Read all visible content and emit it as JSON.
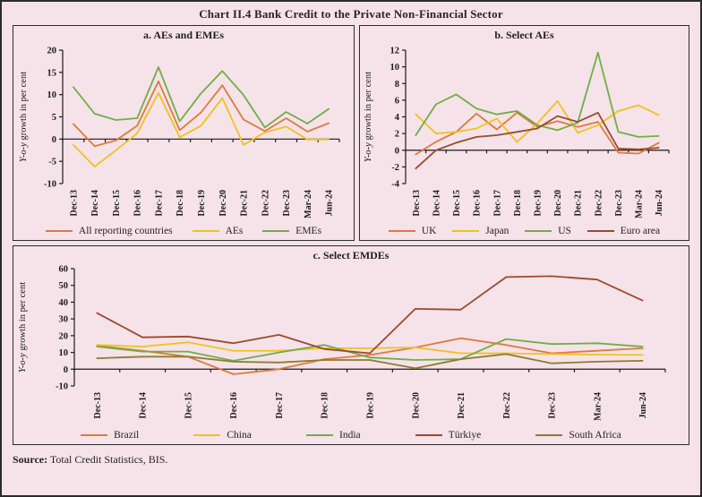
{
  "title": "Chart II.4 Bank Credit to the Private Non-Financial Sector",
  "source": {
    "label": "Source:",
    "text": " Total Credit Statistics, BIS."
  },
  "colors": {
    "background": "#f5e3e9",
    "border": "#2b2b2b",
    "title_text": "#33211f",
    "axis": "#1a1a1a",
    "orange": "#e0793d",
    "yellow": "#f2c11d",
    "green": "#70ad47",
    "maroon": "#9c4a2f",
    "olive": "#8d7b32"
  },
  "chart_data": [
    {
      "type": "line",
      "title": "a. AEs and EMEs",
      "ylabel": "Y-o-y growth in per cent",
      "ylim": [
        -10,
        20
      ],
      "ytick_step": 5,
      "grid": false,
      "legend_position": "bottom",
      "categories": [
        "Dec-13",
        "Dec-14",
        "Dec-15",
        "Dec-16",
        "Dec-17",
        "Dec-18",
        "Dec-19",
        "Dec-20",
        "Dec-21",
        "Dec-22",
        "Dec-23",
        "Mar-24",
        "Jun-24"
      ],
      "series": [
        {
          "name": "All reporting countries",
          "color": "#e0793d",
          "values": [
            3.4,
            -1.6,
            -0.3,
            3.0,
            13.0,
            2.0,
            6.0,
            12.1,
            4.4,
            1.8,
            4.7,
            1.7,
            3.6
          ]
        },
        {
          "name": "AEs",
          "color": "#f2c11d",
          "values": [
            -1.3,
            -6.2,
            -2.5,
            1.3,
            10.4,
            0.4,
            3.0,
            9.2,
            -1.3,
            1.5,
            2.8,
            -0.1,
            -0.1
          ]
        },
        {
          "name": "EMEs",
          "color": "#70ad47",
          "values": [
            11.7,
            5.7,
            4.3,
            4.7,
            16.2,
            4.0,
            10.3,
            15.3,
            9.9,
            2.6,
            6.1,
            3.5,
            6.8
          ]
        }
      ]
    },
    {
      "type": "line",
      "title": "b. Select AEs",
      "ylabel": "Y-o-y growth in per cent",
      "ylim": [
        -4,
        12
      ],
      "ytick_step": 2,
      "grid": false,
      "legend_position": "bottom",
      "categories": [
        "Dec-13",
        "Dec-14",
        "Dec-15",
        "Dec-16",
        "Dec-17",
        "Dec-18",
        "Dec-19",
        "Dec-20",
        "Dec-21",
        "Dec-22",
        "Dec-23",
        "Mar-24",
        "Jun-24"
      ],
      "series": [
        {
          "name": "UK",
          "color": "#e0793d",
          "values": [
            -0.5,
            1.0,
            2.2,
            4.4,
            2.5,
            4.5,
            2.8,
            3.5,
            2.8,
            3.4,
            -0.3,
            -0.4,
            0.9
          ]
        },
        {
          "name": "Japan",
          "color": "#f2c11d",
          "values": [
            4.3,
            2.0,
            2.2,
            2.6,
            3.8,
            1.0,
            3.2,
            5.9,
            2.1,
            3.0,
            4.7,
            5.4,
            4.2
          ]
        },
        {
          "name": "US",
          "color": "#70ad47",
          "values": [
            1.8,
            5.5,
            6.7,
            5.0,
            4.3,
            4.7,
            3.0,
            2.4,
            3.3,
            11.7,
            2.2,
            1.6,
            1.7
          ]
        },
        {
          "name": "Euro area",
          "color": "#9c4a2f",
          "values": [
            -2.2,
            0.0,
            0.9,
            1.6,
            1.8,
            2.2,
            2.6,
            4.1,
            3.4,
            4.5,
            0.2,
            0.1,
            0.3
          ]
        }
      ]
    },
    {
      "type": "line",
      "title": "c. Select EMDEs",
      "ylabel": "Y-o-y growth in per cent",
      "ylim": [
        -10,
        60
      ],
      "ytick_step": 10,
      "grid": false,
      "legend_position": "bottom",
      "categories": [
        "Dec-13",
        "Dec-14",
        "Dec-15",
        "Dec-16",
        "Dec-17",
        "Dec-18",
        "Dec-19",
        "Dec-20",
        "Dec-21",
        "Dec-22",
        "Dec-23",
        "Mar-24",
        "Jun-24"
      ],
      "series": [
        {
          "name": "Brazil",
          "color": "#e0793d",
          "values": [
            14.0,
            11.0,
            7.5,
            -3.0,
            0.0,
            6.0,
            8.5,
            13.0,
            18.5,
            14.5,
            9.5,
            11.0,
            12.5
          ]
        },
        {
          "name": "China",
          "color": "#f2c11d",
          "values": [
            14.5,
            13.5,
            16.0,
            11.0,
            11.0,
            12.5,
            12.5,
            13.0,
            9.5,
            9.5,
            9.0,
            8.7,
            8.5
          ]
        },
        {
          "name": "India",
          "color": "#70ad47",
          "values": [
            13.5,
            10.5,
            10.5,
            5.0,
            10.0,
            14.5,
            7.0,
            5.5,
            6.0,
            18.0,
            15.0,
            15.5,
            13.5
          ]
        },
        {
          "name": "Türkiye",
          "color": "#9c4a2f",
          "values": [
            33.5,
            19.0,
            19.5,
            15.5,
            20.5,
            12.0,
            9.5,
            36.0,
            35.5,
            55.0,
            55.5,
            53.5,
            41.0
          ]
        },
        {
          "name": "South Africa",
          "color": "#8d7b32",
          "values": [
            6.5,
            7.5,
            7.5,
            4.5,
            4.0,
            5.5,
            5.5,
            0.5,
            6.0,
            9.0,
            3.5,
            4.5,
            5.0
          ]
        }
      ]
    }
  ]
}
